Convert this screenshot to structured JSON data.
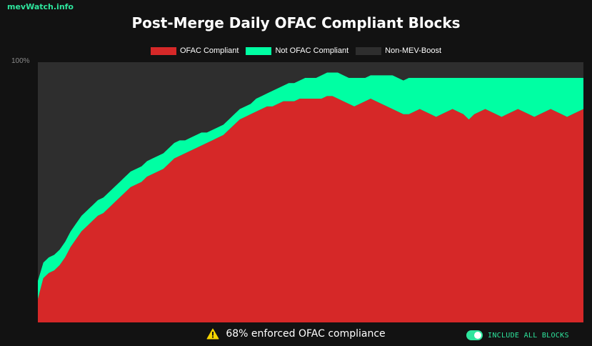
{
  "brand": "mevWatch.info",
  "footer": {
    "message": "68% enforced OFAC compliance",
    "toggle_label": "INCLUDE ALL BLOCKS",
    "toggle_on": true
  },
  "colors": {
    "background": "#121212",
    "plot_background": "#2e2e2e",
    "ofac": "#d62828",
    "not_ofac": "#00ffa3",
    "non_mev": "#2e2e2e",
    "accent": "#2ee59d"
  },
  "icons": {
    "warning": "warning-triangle-icon"
  },
  "chart_data": {
    "type": "area",
    "stacked": true,
    "title": "Post-Merge Daily OFAC Compliant Blocks",
    "xlabel": "",
    "ylabel": "",
    "ytick_labels": [
      "100%"
    ],
    "ylim": [
      0,
      100
    ],
    "legend_position": "top-center",
    "grid": false,
    "x": [
      0,
      1,
      2,
      3,
      4,
      5,
      6,
      7,
      8,
      9,
      10,
      11,
      12,
      13,
      14,
      15,
      16,
      17,
      18,
      19,
      20,
      21,
      22,
      23,
      24,
      25,
      26,
      27,
      28,
      29,
      30,
      31,
      32,
      33,
      34,
      35,
      36,
      37,
      38,
      39,
      40,
      41,
      42,
      43,
      44,
      45,
      46,
      47,
      48,
      49,
      50,
      51,
      52,
      53,
      54,
      55,
      56,
      57,
      58,
      59,
      60,
      61,
      62,
      63,
      64,
      65,
      66,
      67,
      68,
      69,
      70,
      71,
      72,
      73,
      74,
      75,
      76,
      77,
      78,
      79,
      80,
      81,
      82,
      83,
      84,
      85,
      86,
      87,
      88,
      89,
      90,
      91,
      92,
      93,
      94,
      95,
      96,
      97,
      98,
      99,
      100
    ],
    "series": [
      {
        "name": "OFAC Compliant",
        "values": [
          9,
          17,
          19,
          20,
          22,
          25,
          29,
          32,
          35,
          37,
          39,
          41,
          42,
          44,
          46,
          48,
          50,
          52,
          53,
          54,
          56,
          57,
          58,
          59,
          61,
          63,
          64,
          65,
          66,
          67,
          68,
          69,
          70,
          71,
          72,
          74,
          76,
          78,
          79,
          80,
          81,
          82,
          83,
          83,
          84,
          85,
          85,
          85,
          86,
          86,
          86,
          86,
          86,
          87,
          87,
          86,
          85,
          84,
          83,
          84,
          85,
          86,
          85,
          84,
          83,
          82,
          81,
          80,
          80,
          81,
          82,
          81,
          80,
          79,
          80,
          81,
          82,
          81,
          80,
          78,
          80,
          81,
          82,
          81,
          80,
          79,
          80,
          81,
          82,
          81,
          80,
          79,
          80,
          81,
          82,
          81,
          80,
          79,
          80,
          81,
          82
        ]
      },
      {
        "name": "Not OFAC Compliant",
        "values": [
          7,
          6,
          6,
          6,
          6,
          6,
          6,
          6,
          6,
          6,
          6,
          6,
          6,
          6,
          6,
          6,
          6,
          6,
          6,
          6,
          6,
          6,
          6,
          6,
          6,
          6,
          6,
          5,
          5,
          5,
          5,
          4,
          4,
          4,
          4,
          4,
          4,
          4,
          4,
          4,
          5,
          5,
          5,
          6,
          6,
          6,
          7,
          7,
          7,
          8,
          8,
          8,
          9,
          9,
          9,
          10,
          10,
          10,
          11,
          10,
          9,
          9,
          10,
          11,
          12,
          13,
          13,
          13,
          14,
          13,
          12,
          13,
          14,
          15,
          14,
          13,
          12,
          13,
          14,
          16,
          14,
          13,
          12,
          13,
          14,
          15,
          14,
          13,
          12,
          13,
          14,
          15,
          14,
          13,
          12,
          13,
          14,
          15,
          14,
          13,
          12
        ]
      },
      {
        "name": "Non-MEV-Boost",
        "values": [
          84,
          77,
          75,
          74,
          72,
          69,
          65,
          62,
          59,
          57,
          55,
          53,
          52,
          50,
          48,
          46,
          44,
          42,
          41,
          40,
          38,
          37,
          36,
          35,
          33,
          31,
          30,
          30,
          29,
          28,
          27,
          27,
          26,
          25,
          24,
          22,
          20,
          18,
          17,
          16,
          14,
          13,
          12,
          11,
          10,
          9,
          8,
          8,
          7,
          6,
          6,
          6,
          5,
          4,
          4,
          4,
          5,
          6,
          6,
          6,
          6,
          5,
          5,
          5,
          5,
          5,
          6,
          7,
          6,
          6,
          6,
          6,
          6,
          6,
          6,
          6,
          6,
          6,
          6,
          6,
          6,
          6,
          6,
          6,
          6,
          6,
          6,
          6,
          6,
          6,
          6,
          6,
          6,
          6,
          6,
          6,
          6,
          6,
          6,
          6,
          6
        ]
      }
    ]
  }
}
